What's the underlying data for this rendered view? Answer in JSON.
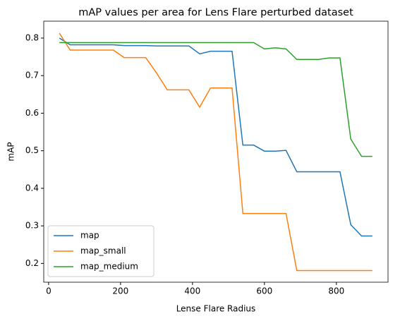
{
  "chart_data": {
    "type": "line",
    "title": "mAP values per area for Lens Flare perturbed dataset",
    "x_label": "Lense Flare Radius",
    "y_label": "mAP",
    "x": [
      30,
      60,
      90,
      120,
      150,
      180,
      210,
      240,
      270,
      300,
      330,
      360,
      390,
      420,
      450,
      480,
      510,
      540,
      570,
      600,
      630,
      660,
      690,
      720,
      750,
      780,
      810,
      840,
      870,
      900
    ],
    "series": [
      {
        "name": "map",
        "color": "#1f77b4",
        "values": [
          0.8,
          0.782,
          0.782,
          0.782,
          0.782,
          0.782,
          0.78,
          0.78,
          0.78,
          0.779,
          0.779,
          0.779,
          0.779,
          0.758,
          0.765,
          0.765,
          0.765,
          0.515,
          0.515,
          0.499,
          0.499,
          0.501,
          0.444,
          0.444,
          0.444,
          0.444,
          0.444,
          0.303,
          0.273,
          0.273
        ]
      },
      {
        "name": "map_small",
        "color": "#ff7f0e",
        "values": [
          0.813,
          0.768,
          0.768,
          0.768,
          0.768,
          0.768,
          0.748,
          0.748,
          0.748,
          0.707,
          0.662,
          0.662,
          0.662,
          0.616,
          0.667,
          0.667,
          0.667,
          0.333,
          0.333,
          0.333,
          0.333,
          0.333,
          0.181,
          0.181,
          0.181,
          0.181,
          0.181,
          0.181,
          0.181,
          0.181
        ]
      },
      {
        "name": "map_medium",
        "color": "#2ca02c",
        "values": [
          0.788,
          0.788,
          0.788,
          0.788,
          0.788,
          0.788,
          0.788,
          0.788,
          0.788,
          0.788,
          0.788,
          0.788,
          0.788,
          0.788,
          0.788,
          0.788,
          0.788,
          0.788,
          0.788,
          0.771,
          0.774,
          0.771,
          0.743,
          0.743,
          0.743,
          0.747,
          0.747,
          0.531,
          0.485,
          0.485
        ]
      }
    ],
    "xlim": [
      -13.5,
      943.5
    ],
    "xticks": [
      0,
      200,
      400,
      600,
      800
    ],
    "ylim": [
      0.15,
      0.845
    ],
    "yticks": [
      0.2,
      0.3,
      0.4,
      0.5,
      0.6,
      0.7,
      0.8
    ],
    "grid": false,
    "legend_position": "lower left"
  }
}
